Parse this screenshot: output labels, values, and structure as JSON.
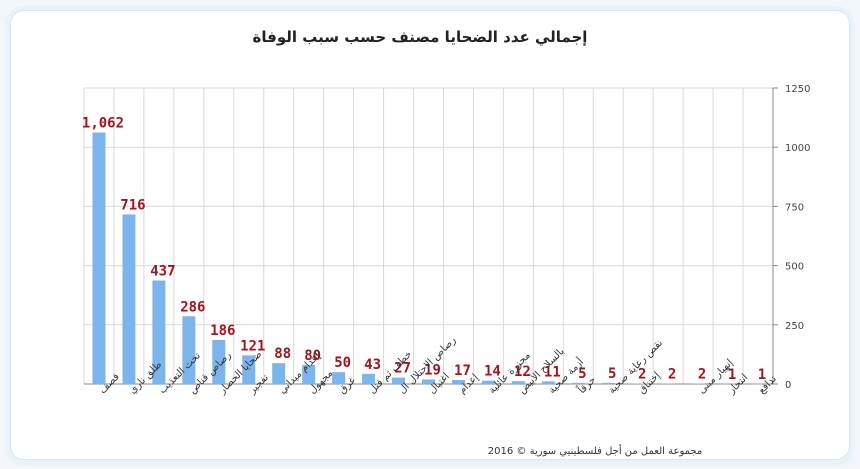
{
  "chart_data": {
    "type": "bar",
    "title": "إجمالي عدد الضحايا مصنف حسب سبب الوفاة",
    "categories": [
      "قصف",
      "طلق ناري",
      "تحت التعذيب",
      "رصاص قناص",
      "ضحايا الحصار",
      "تفجير",
      "إعدام ميداني",
      "مجهول",
      "غرق",
      "خطف ثم قتل",
      "رصاص الاحتلال ال",
      "اغتيال",
      "إعدام",
      "مجزرة عائلية",
      "بالسلاح الأبيض",
      "أزمة صحية",
      "حرقاً",
      "نقص رعاية صحية",
      "إختناق",
      "",
      "إنهيار مبنى",
      "انتحار",
      "تدافع"
    ],
    "values": [
      1062,
      716,
      437,
      286,
      186,
      121,
      88,
      80,
      50,
      43,
      27,
      19,
      17,
      14,
      12,
      11,
      5,
      5,
      2,
      2,
      2,
      1,
      1
    ],
    "data_labels": [
      "1,062",
      "716",
      "437",
      "286",
      "186",
      "121",
      "88",
      "80",
      "50",
      "43",
      "27",
      "19",
      "17",
      "14",
      "12",
      "11",
      "5",
      "5",
      "2",
      "2",
      "2",
      "1",
      "1"
    ],
    "yticks": [
      "0",
      "250",
      "500",
      "750",
      "1000",
      "1250"
    ],
    "ylim": [
      0,
      1250
    ],
    "y_axis_side": "right",
    "grid": true,
    "bar_color": "#7cb5ec",
    "label_color": "#a0141e"
  },
  "credit": "مجموعة العمل من أجل فلسطينيي سورية © 2016"
}
